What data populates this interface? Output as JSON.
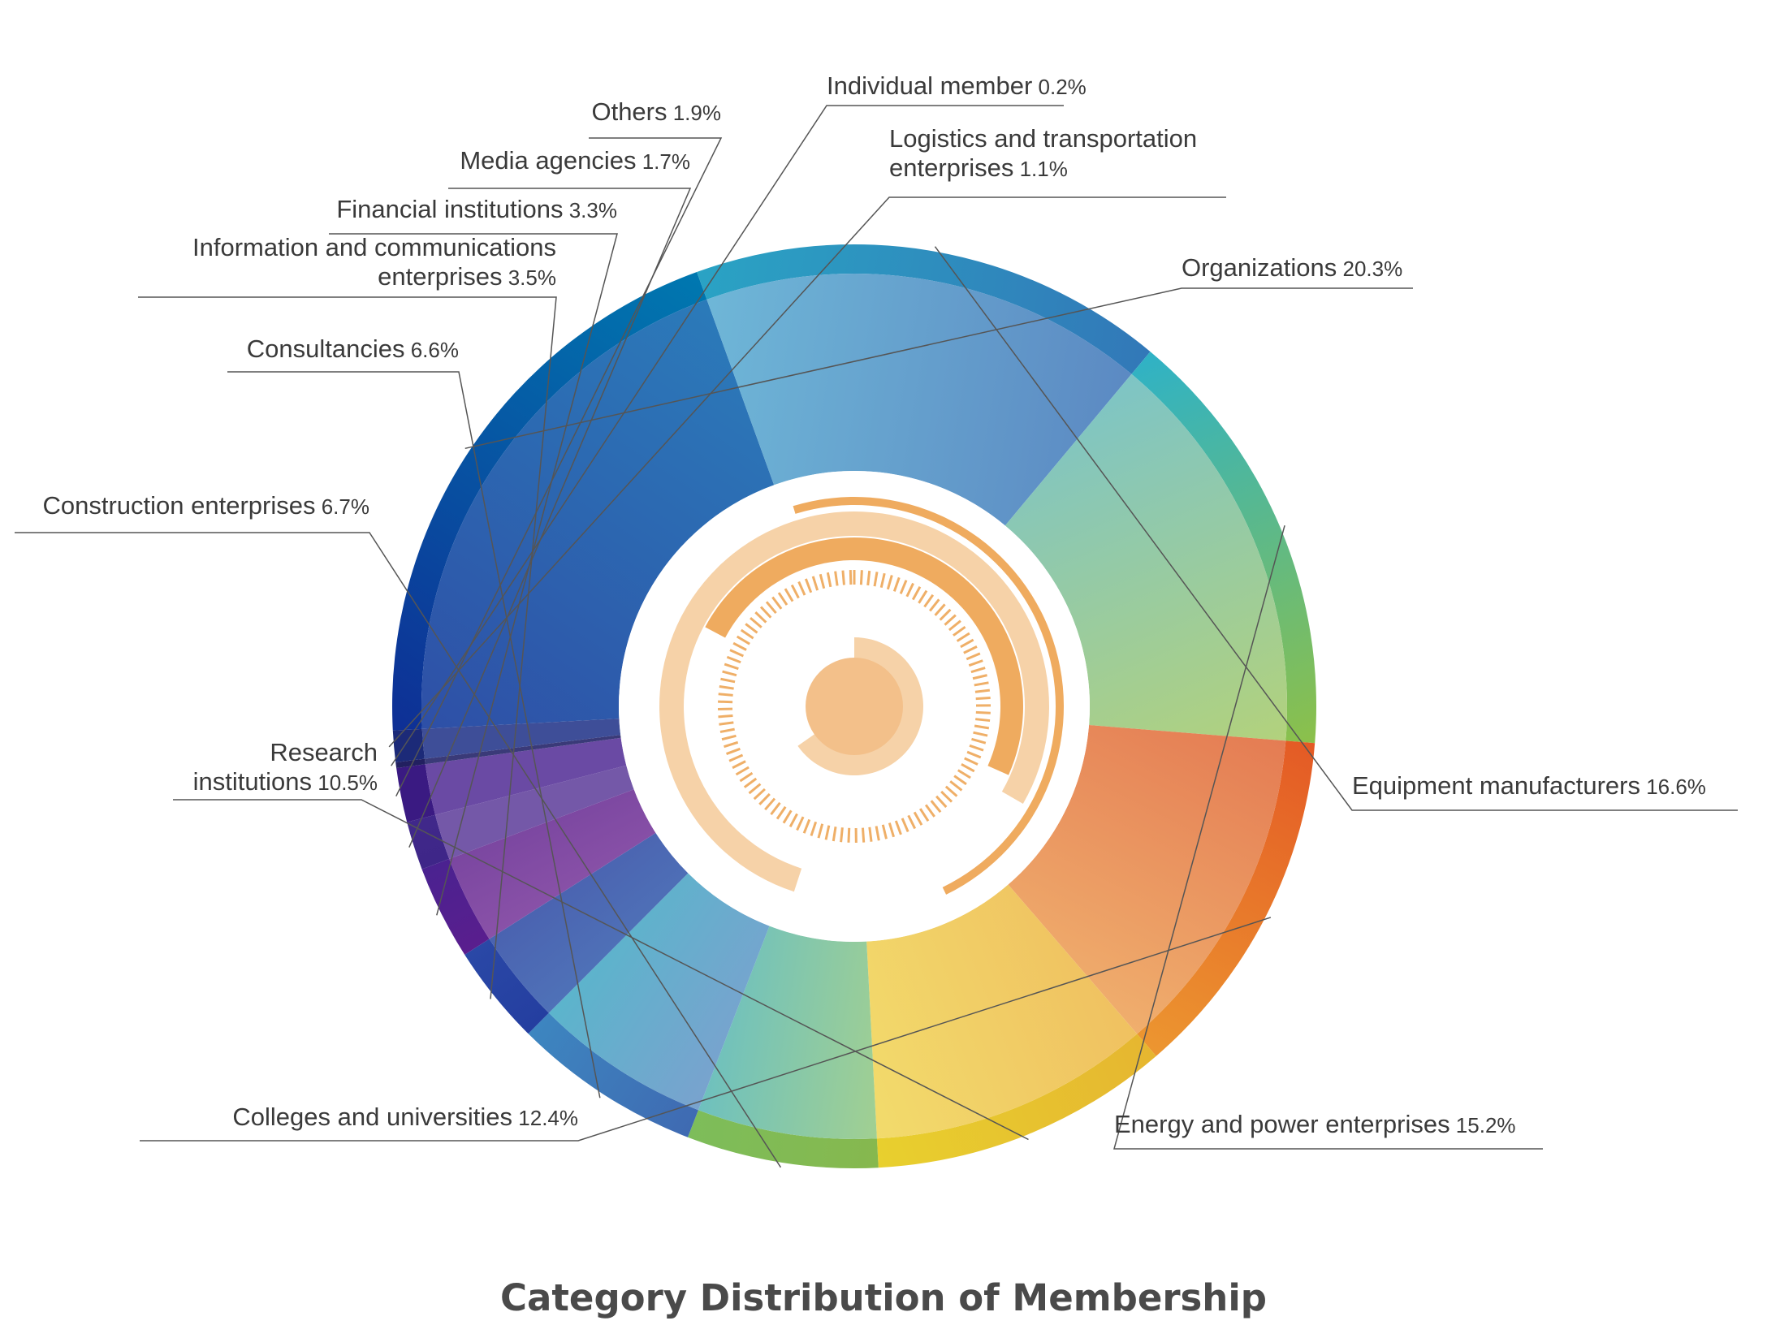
{
  "chart_data": {
    "type": "pie",
    "variant": "donut",
    "title": "Category Distribution of Membership",
    "unit": "%",
    "slices": [
      {
        "name": "Organizations",
        "value_label": "20.3%",
        "value": 20.3,
        "color_outer": "#0e2f95",
        "color_outer2": "#0078b0",
        "color_inner": "#2e4ea6",
        "color_inner2": "#2b7cba"
      },
      {
        "name": "Equipment manufacturers",
        "value_label": "16.6%",
        "value": 16.6,
        "color_outer": "#2aa3c4",
        "color_outer2": "#3278b8",
        "color_inner": "#6fb8d8",
        "color_inner2": "#5b88c2"
      },
      {
        "name": "Energy and power enterprises",
        "value_label": "15.2%",
        "value": 15.2,
        "color_outer": "#2fb2c6",
        "color_outer2": "#8cc04a",
        "color_inner": "#7cc4c8",
        "color_inner2": "#b4d27a"
      },
      {
        "name": "Colleges and universities",
        "value_label": "12.4%",
        "value": 12.4,
        "color_outer": "#e45a25",
        "color_outer2": "#ec9630",
        "color_inner": "#e47a52",
        "color_inner2": "#f0b06e"
      },
      {
        "name": "Research institutions",
        "value_label": "10.5%",
        "value": 10.5,
        "color_outer": "#e6b630",
        "color_outer2": "#e8d02e",
        "color_inner": "#f0c060",
        "color_inner2": "#f2dc6c"
      },
      {
        "name": "Construction enterprises",
        "value_label": "6.7%",
        "value": 6.7,
        "color_outer": "#86b84e",
        "color_outer2": "#7dbd5a",
        "color_inner": "#a3d090",
        "color_inner2": "#6cc0c0"
      },
      {
        "name": "Consultancies",
        "value_label": "6.6%",
        "value": 6.6,
        "color_outer": "#3f6ab2",
        "color_outer2": "#3d86c0",
        "color_inner": "#7aa2ce",
        "color_inner2": "#5ab5cc"
      },
      {
        "name": "Information and communications enterprises",
        "value_label": "3.5%",
        "value": 3.5,
        "color_outer": "#243ea0",
        "color_outer2": "#2a48a6",
        "color_inner": "#4f72b8",
        "color_inner2": "#4a62b0"
      },
      {
        "name": "Financial institutions",
        "value_label": "3.3%",
        "value": 3.3,
        "color_outer": "#5a1e8e",
        "color_outer2": "#4a2290",
        "color_inner": "#8a52a8",
        "color_inner2": "#7a46a0"
      },
      {
        "name": "Media agencies",
        "value_label": "1.7%",
        "value": 1.7,
        "color_outer": "#3e2688",
        "color_outer2": "#40288a",
        "color_inner": "#7458a8",
        "color_inner2": "#7458a8"
      },
      {
        "name": "Others",
        "value_label": "1.9%",
        "value": 1.9,
        "color_outer": "#3a1a82",
        "color_outer2": "#3a1a82",
        "color_inner": "#6a4aa4",
        "color_inner2": "#6a4aa4"
      },
      {
        "name": "Individual member",
        "value_label": "0.2%",
        "value": 0.2,
        "color_outer": "#222060",
        "color_outer2": "#222060",
        "color_inner": "#3a3a78",
        "color_inner2": "#3a3a78"
      },
      {
        "name": "Logistics and transportation enterprises",
        "value_label": "1.1%",
        "value": 1.1,
        "color_outer": "#1c2a78",
        "color_outer2": "#1c2a78",
        "color_inner": "#3e4e98",
        "color_inner2": "#3e4e98"
      }
    ],
    "labels": [
      {
        "lines": [
          "Organizations"
        ],
        "value_label": "20.3%"
      },
      {
        "lines": [
          "Equipment manufacturers"
        ],
        "value_label": "16.6%"
      },
      {
        "lines": [
          "Energy and power enterprises"
        ],
        "value_label": "15.2%"
      },
      {
        "lines": [
          "Colleges and universities"
        ],
        "value_label": "12.4%"
      },
      {
        "lines": [
          "Research",
          "institutions"
        ],
        "value_label": "10.5%"
      },
      {
        "lines": [
          "Construction enterprises"
        ],
        "value_label": "6.7%"
      },
      {
        "lines": [
          "Consultancies"
        ],
        "value_label": "6.6%"
      },
      {
        "lines": [
          "Information and communications",
          "enterprises"
        ],
        "value_label": "3.5%"
      },
      {
        "lines": [
          "Financial institutions"
        ],
        "value_label": "3.3%"
      },
      {
        "lines": [
          "Media agencies"
        ],
        "value_label": "1.7%"
      },
      {
        "lines": [
          "Others"
        ],
        "value_label": "1.9%"
      },
      {
        "lines": [
          "Individual member"
        ],
        "value_label": "0.2%"
      },
      {
        "lines": [
          "Logistics and transportation",
          "enterprises"
        ],
        "value_label": "1.1%"
      }
    ],
    "center_decoration_color": "#eda24e",
    "center_decoration_light": "#f6d2a8"
  }
}
